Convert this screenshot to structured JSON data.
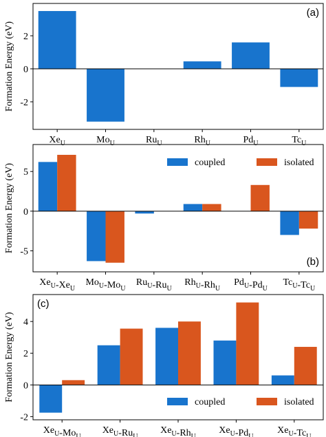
{
  "chart_data": [
    {
      "type": "bar",
      "annotation": "(a)",
      "ylabel": "Formation Energy (eV)",
      "categories": [
        "XeU",
        "MoU",
        "RuU",
        "RhU",
        "PdU",
        "TcU"
      ],
      "values": [
        3.5,
        -3.2,
        0,
        0.45,
        1.6,
        -1.1
      ],
      "color": "#1874cd",
      "ylim": [
        -3.67,
        3.96
      ],
      "yticks": [
        -2,
        0,
        2
      ]
    },
    {
      "type": "bar",
      "annotation": "(b)",
      "ylabel": "Formation Energy (eV)",
      "categories": [
        "XeU-XeU",
        "MoU-MoU",
        "RuU-RuU",
        "RhU-RhU",
        "PdU-PdU",
        "TcU-TcU"
      ],
      "series": [
        {
          "name": "coupled",
          "color": "#1874cd",
          "values": [
            6.2,
            -6.3,
            -0.3,
            0.9,
            0,
            -3.0
          ]
        },
        {
          "name": "isolated",
          "color": "#d9561e",
          "values": [
            7.1,
            -6.5,
            0,
            0.9,
            3.3,
            -2.2
          ]
        }
      ],
      "ylim": [
        -7.65,
        8.4
      ],
      "yticks": [
        -5,
        0,
        5
      ],
      "legend": "upper right"
    },
    {
      "type": "bar",
      "annotation": "(c)",
      "ylabel": "Formation Energy (eV)",
      "categories": [
        "XeU-MoU",
        "XeU-RuU",
        "XeU-RhU",
        "XeU-PdU",
        "XeU-TcU"
      ],
      "series": [
        {
          "name": "coupled",
          "color": "#1874cd",
          "values": [
            -1.75,
            2.5,
            3.6,
            2.8,
            0.6
          ]
        },
        {
          "name": "isolated",
          "color": "#d9561e",
          "values": [
            0.3,
            3.55,
            4.0,
            5.2,
            2.4
          ]
        }
      ],
      "ylim": [
        -2.2,
        5.7
      ],
      "yticks": [
        -2,
        0,
        2,
        4
      ],
      "legend": "lower right"
    }
  ]
}
